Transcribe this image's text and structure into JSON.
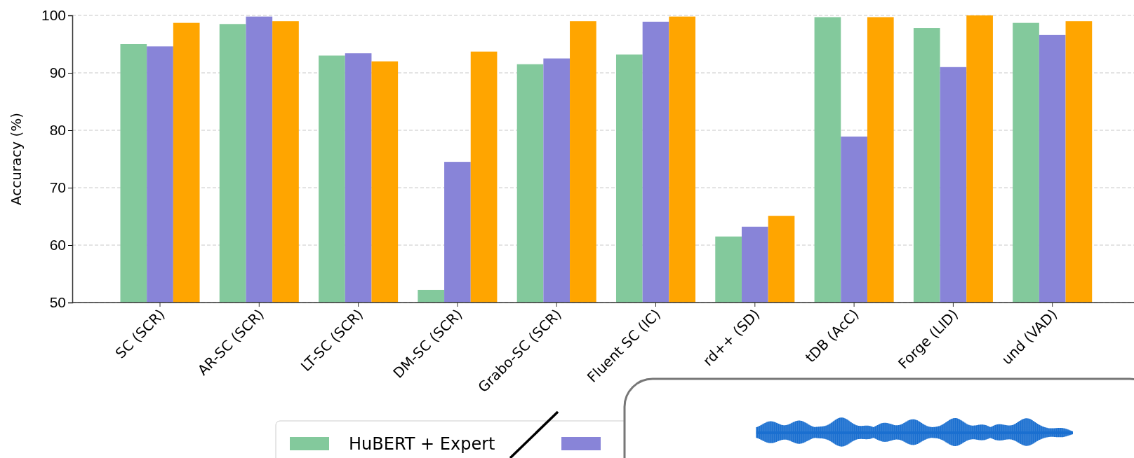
{
  "chart_data": {
    "type": "bar",
    "ylabel": "Accuracy (%)",
    "categories": [
      "SC (SCR)",
      "AR-SC (SCR)",
      "LT-SC (SCR)",
      "DM-SC (SCR)",
      "Grabo-SC (SCR)",
      "Fluent SC (IC)",
      "rd++ (SD)",
      "tDB (AcC)",
      "Forge (LID)",
      "und (VAD)"
    ],
    "series": [
      {
        "name": "HuBERT + Expert",
        "color": "#83c99c",
        "values": [
          95.0,
          98.5,
          93.0,
          52.2,
          91.5,
          93.2,
          61.5,
          99.7,
          97.8,
          98.7
        ]
      },
      {
        "color": "#8884d8",
        "values": [
          94.6,
          99.8,
          93.4,
          74.5,
          92.5,
          98.9,
          63.2,
          78.9,
          91.0,
          96.6
        ]
      },
      {
        "color": "#ffa500",
        "values": [
          98.7,
          99.0,
          92.0,
          93.7,
          99.0,
          99.8,
          65.1,
          99.7,
          100.0,
          99.0
        ]
      }
    ],
    "ylim": [
      50,
      100
    ],
    "yticks": [
      50,
      60,
      70,
      80,
      90,
      100
    ],
    "grid": "y",
    "legend": "bottom"
  }
}
